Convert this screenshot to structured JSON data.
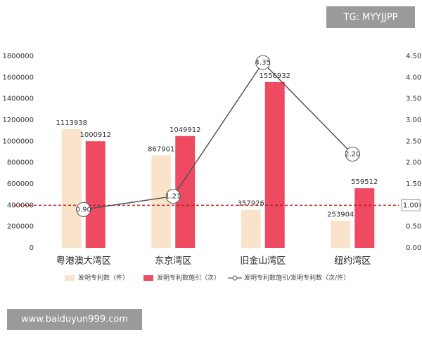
{
  "watermarks": [
    "TG: MYYJJPP",
    "www.baiduyun999.com"
  ],
  "chart_data": {
    "type": "bar",
    "categories": [
      "粤港澳大湾区",
      "东京湾区",
      "旧金山湾区",
      "纽约湾区"
    ],
    "series": [
      {
        "name": "发明专利数（件）",
        "type": "bar",
        "color": "#f9e4cb",
        "values": [
          1113938,
          867901,
          357926,
          253904
        ]
      },
      {
        "name": "发明专利数施引（次）",
        "type": "bar",
        "color": "#ee4a62",
        "values": [
          1000912,
          1049912,
          1556932,
          559512
        ]
      },
      {
        "name": "发明专利数施引/发明专利数（次/件）",
        "type": "line",
        "axis": "y2",
        "color": "#555555",
        "values": [
          0.9,
          1.21,
          4.35,
          2.2
        ],
        "value_labels": [
          "0.90",
          "1.21",
          "4.35",
          "2.20"
        ]
      }
    ],
    "ylim": [
      0,
      1800000
    ],
    "yticks": [
      0,
      200000,
      400000,
      600000,
      800000,
      1000000,
      1200000,
      1400000,
      1600000,
      1800000
    ],
    "y2lim": [
      0,
      4.5
    ],
    "y2ticks": [
      {
        "value": 0,
        "label": "0.00"
      },
      {
        "value": 0.5,
        "label": "0.50"
      },
      {
        "value": 1,
        "label": "1.00"
      },
      {
        "value": 1.5,
        "label": "1.50"
      },
      {
        "value": 2,
        "label": "2.00"
      },
      {
        "value": 2.5,
        "label": "2.50"
      },
      {
        "value": 3,
        "label": "3.00"
      },
      {
        "value": 3.5,
        "label": "3.50"
      },
      {
        "value": 4,
        "label": "4.00"
      },
      {
        "value": 4.5,
        "label": "4.50"
      }
    ],
    "reference_line": {
      "value": 1,
      "label": "1.00",
      "axis": "y2",
      "color": "#b22222"
    },
    "legend": "bottom"
  }
}
